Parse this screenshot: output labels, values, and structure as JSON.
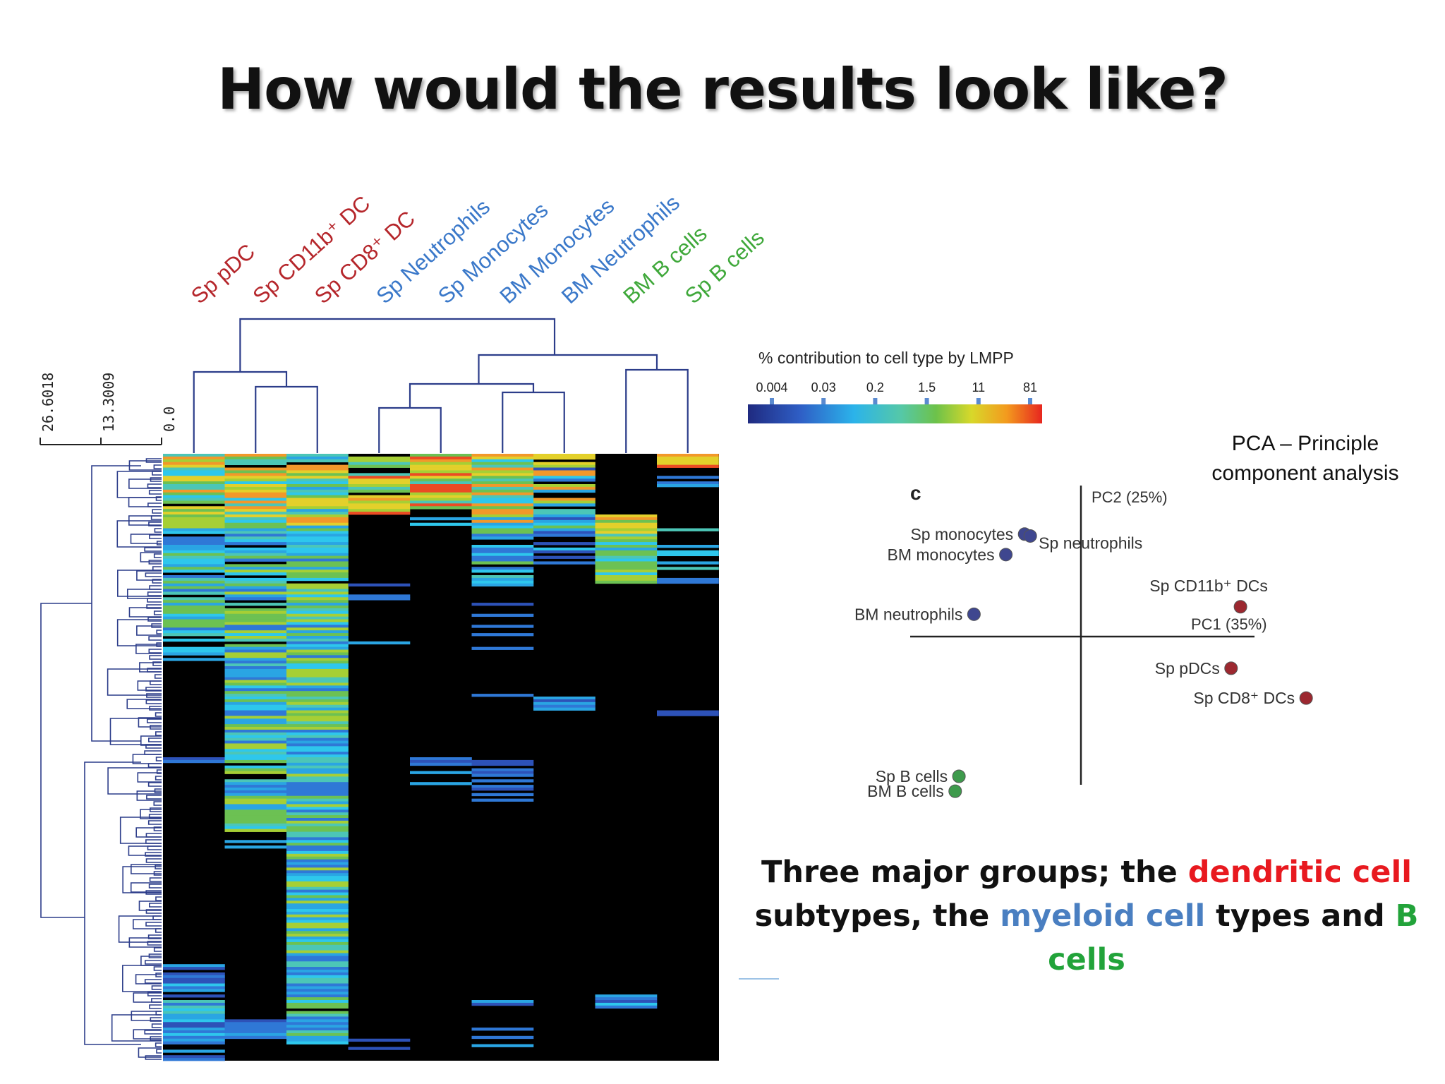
{
  "title": "How would the results look like?",
  "chart_data": [
    {
      "type": "heatmap",
      "columns": [
        {
          "label": "Sp pDC",
          "color": "#b5262b"
        },
        {
          "label": "Sp CD11b⁺ DC",
          "color": "#b5262b"
        },
        {
          "label": "Sp CD8⁺ DC",
          "color": "#b5262b"
        },
        {
          "label": "Sp Neutrophils",
          "color": "#3a78c9"
        },
        {
          "label": "Sp Monocytes",
          "color": "#3a78c9"
        },
        {
          "label": "BM Monocytes",
          "color": "#3a78c9"
        },
        {
          "label": "BM Neutrophils",
          "color": "#3a78c9"
        },
        {
          "label": "BM B cells",
          "color": "#3fa83a"
        },
        {
          "label": "Sp B cells",
          "color": "#3fa83a"
        }
      ],
      "scale_ticks": [
        "26.6018",
        "13.3009",
        "0.0"
      ],
      "colorbar": {
        "title": "% contribution to cell type by LMPP",
        "ticks": [
          "0.004",
          "0.03",
          "0.2",
          "1.5",
          "11",
          "81"
        ]
      }
    },
    {
      "type": "scatter",
      "panel_label": "c",
      "xlabel": "PC1 (35%)",
      "ylabel": "PC2 (25%)",
      "points": [
        {
          "label": "Sp monocytes",
          "x": -0.3,
          "y": 0.55,
          "group": "myeloid"
        },
        {
          "label": "Sp neutrophils",
          "x": -0.27,
          "y": 0.54,
          "group": "myeloid"
        },
        {
          "label": "BM monocytes",
          "x": -0.4,
          "y": 0.44,
          "group": "myeloid"
        },
        {
          "label": "BM neutrophils",
          "x": -0.57,
          "y": 0.12,
          "group": "myeloid"
        },
        {
          "label": "Sp CD11b⁺ DCs",
          "x": 0.85,
          "y": 0.16,
          "group": "dendritic"
        },
        {
          "label": "Sp pDCs",
          "x": 0.8,
          "y": -0.17,
          "group": "dendritic"
        },
        {
          "label": "Sp CD8⁺ DCs",
          "x": 1.2,
          "y": -0.33,
          "group": "dendritic"
        },
        {
          "label": "Sp B cells",
          "x": -0.65,
          "y": -0.75,
          "group": "bcell"
        },
        {
          "label": "BM B cells",
          "x": -0.67,
          "y": -0.83,
          "group": "bcell"
        }
      ],
      "group_colors": {
        "myeloid": "#3f478f",
        "dendritic": "#9c2830",
        "bcell": "#3e9a4c"
      }
    }
  ],
  "pca_note": "PCA – Principle component analysis",
  "summary": {
    "part1": "Three major groups; the ",
    "red": "dendritic cell",
    "part2": " subtypes, the ",
    "blue": "myeloid cell",
    "part3": " types and ",
    "green": "B cells"
  }
}
